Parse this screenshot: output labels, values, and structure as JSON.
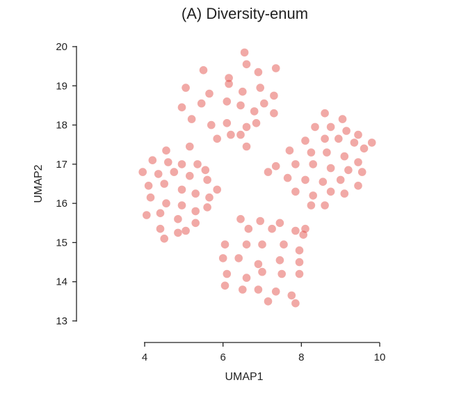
{
  "chart_data": {
    "type": "scatter",
    "title": "(A) Diversity-enum",
    "xlabel": "UMAP1",
    "ylabel": "UMAP2",
    "xlim": [
      3.8,
      10.1
    ],
    "ylim": [
      12.9,
      20.2
    ],
    "xticks": [
      4,
      6,
      8,
      10
    ],
    "yticks": [
      13,
      14,
      15,
      16,
      17,
      18,
      19,
      20
    ],
    "xtick_labels": [
      "4",
      "6",
      "8",
      "10"
    ],
    "ytick_labels": [
      "13",
      "14",
      "15",
      "16",
      "17",
      "18",
      "19",
      "20"
    ],
    "grid": false,
    "legend": "none",
    "point_color": "#e0413a",
    "point_opacity": 0.45,
    "series": [
      {
        "values": [
          [
            5.5,
            19.4
          ],
          [
            6.15,
            19.2
          ],
          [
            6.55,
            19.85
          ],
          [
            6.6,
            19.55
          ],
          [
            6.9,
            19.35
          ],
          [
            7.35,
            19.45
          ],
          [
            5.05,
            18.95
          ],
          [
            5.65,
            18.8
          ],
          [
            6.15,
            19.05
          ],
          [
            6.5,
            18.85
          ],
          [
            6.95,
            18.95
          ],
          [
            7.3,
            18.75
          ],
          [
            4.95,
            18.45
          ],
          [
            5.45,
            18.55
          ],
          [
            6.1,
            18.6
          ],
          [
            6.45,
            18.5
          ],
          [
            6.8,
            18.35
          ],
          [
            7.05,
            18.55
          ],
          [
            7.3,
            18.3
          ],
          [
            5.2,
            18.15
          ],
          [
            5.7,
            18.0
          ],
          [
            6.1,
            18.05
          ],
          [
            6.6,
            17.95
          ],
          [
            6.85,
            18.05
          ],
          [
            5.85,
            17.65
          ],
          [
            6.2,
            17.75
          ],
          [
            6.6,
            17.45
          ],
          [
            6.45,
            17.75
          ],
          [
            4.55,
            17.35
          ],
          [
            5.15,
            17.45
          ],
          [
            4.2,
            17.1
          ],
          [
            4.6,
            17.05
          ],
          [
            4.95,
            17.0
          ],
          [
            5.35,
            17.0
          ],
          [
            5.55,
            16.85
          ],
          [
            3.95,
            16.8
          ],
          [
            4.35,
            16.75
          ],
          [
            4.75,
            16.8
          ],
          [
            5.15,
            16.7
          ],
          [
            5.6,
            16.6
          ],
          [
            5.85,
            16.35
          ],
          [
            4.1,
            16.45
          ],
          [
            4.5,
            16.5
          ],
          [
            4.95,
            16.35
          ],
          [
            5.3,
            16.25
          ],
          [
            5.65,
            16.15
          ],
          [
            4.15,
            16.15
          ],
          [
            4.55,
            16.0
          ],
          [
            4.95,
            15.95
          ],
          [
            5.3,
            15.8
          ],
          [
            5.6,
            15.9
          ],
          [
            4.05,
            15.7
          ],
          [
            4.4,
            15.75
          ],
          [
            4.85,
            15.6
          ],
          [
            5.3,
            15.5
          ],
          [
            4.4,
            15.35
          ],
          [
            4.85,
            15.25
          ],
          [
            4.5,
            15.1
          ],
          [
            5.05,
            15.3
          ],
          [
            8.6,
            18.3
          ],
          [
            9.05,
            18.15
          ],
          [
            8.35,
            17.95
          ],
          [
            8.75,
            17.95
          ],
          [
            9.15,
            17.85
          ],
          [
            9.45,
            17.75
          ],
          [
            8.1,
            17.6
          ],
          [
            8.6,
            17.65
          ],
          [
            8.95,
            17.65
          ],
          [
            9.35,
            17.55
          ],
          [
            9.8,
            17.55
          ],
          [
            9.6,
            17.4
          ],
          [
            7.7,
            17.35
          ],
          [
            8.25,
            17.3
          ],
          [
            8.65,
            17.3
          ],
          [
            9.1,
            17.2
          ],
          [
            9.45,
            17.05
          ],
          [
            7.35,
            16.95
          ],
          [
            7.85,
            17.0
          ],
          [
            8.3,
            17.0
          ],
          [
            8.75,
            16.9
          ],
          [
            9.2,
            16.85
          ],
          [
            9.55,
            16.8
          ],
          [
            7.15,
            16.8
          ],
          [
            7.65,
            16.65
          ],
          [
            8.1,
            16.6
          ],
          [
            8.55,
            16.55
          ],
          [
            9.0,
            16.6
          ],
          [
            9.45,
            16.45
          ],
          [
            7.85,
            16.3
          ],
          [
            8.3,
            16.2
          ],
          [
            8.75,
            16.3
          ],
          [
            9.1,
            16.25
          ],
          [
            8.25,
            15.95
          ],
          [
            8.6,
            15.95
          ],
          [
            6.45,
            15.6
          ],
          [
            6.95,
            15.55
          ],
          [
            7.45,
            15.5
          ],
          [
            6.65,
            15.35
          ],
          [
            7.25,
            15.35
          ],
          [
            7.85,
            15.3
          ],
          [
            8.1,
            15.35
          ],
          [
            6.05,
            14.95
          ],
          [
            6.6,
            14.95
          ],
          [
            7.0,
            14.95
          ],
          [
            7.55,
            14.95
          ],
          [
            7.95,
            14.8
          ],
          [
            8.05,
            15.2
          ],
          [
            6.0,
            14.6
          ],
          [
            6.4,
            14.6
          ],
          [
            6.9,
            14.45
          ],
          [
            7.45,
            14.55
          ],
          [
            7.95,
            14.5
          ],
          [
            6.1,
            14.2
          ],
          [
            6.6,
            14.1
          ],
          [
            7.0,
            14.25
          ],
          [
            7.5,
            14.2
          ],
          [
            7.95,
            14.2
          ],
          [
            6.05,
            13.9
          ],
          [
            6.5,
            13.8
          ],
          [
            6.9,
            13.8
          ],
          [
            7.35,
            13.75
          ],
          [
            7.75,
            13.65
          ],
          [
            7.85,
            13.45
          ],
          [
            7.15,
            13.5
          ]
        ]
      }
    ]
  }
}
